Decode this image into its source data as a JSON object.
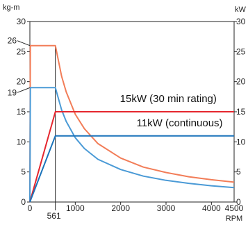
{
  "chart_data": {
    "type": "line",
    "title": "",
    "x_unit": "RPM",
    "y_left_unit": "kg-m",
    "y_right_unit": "kW",
    "xlim": [
      0,
      4500
    ],
    "ylim": [
      0,
      30
    ],
    "x_ticks": [
      {
        "value": 0,
        "label": "0"
      },
      {
        "value": 561,
        "label": "561"
      },
      {
        "value": 1000,
        "label": "1000"
      },
      {
        "value": 2000,
        "label": "2000"
      },
      {
        "value": 3000,
        "label": "3000"
      },
      {
        "value": 4000,
        "label": "4000"
      },
      {
        "value": 4500,
        "label": "4500"
      }
    ],
    "y_ticks": [
      0,
      5,
      10,
      15,
      20,
      25,
      30
    ],
    "y_callouts": [
      {
        "value": 26,
        "label": "26"
      },
      {
        "value": 19,
        "label": "19"
      }
    ],
    "series": [
      {
        "name": "15kW (30 min rating)",
        "kind": "power",
        "color": "#e5262e",
        "points": [
          [
            0,
            0
          ],
          [
            561,
            15
          ],
          [
            4500,
            15
          ]
        ]
      },
      {
        "name": "11kW (continuous)",
        "kind": "power",
        "color": "#1a73ba",
        "points": [
          [
            0,
            0
          ],
          [
            561,
            11
          ],
          [
            4500,
            11
          ]
        ]
      },
      {
        "name": "",
        "kind": "torque",
        "color": "#f27d58",
        "points": [
          [
            0,
            0
          ],
          [
            10,
            26
          ],
          [
            561,
            26
          ],
          [
            700,
            20.9
          ],
          [
            800,
            18.3
          ],
          [
            1000,
            14.6
          ],
          [
            1200,
            12.2
          ],
          [
            1500,
            9.7
          ],
          [
            2000,
            7.3
          ],
          [
            2500,
            5.8
          ],
          [
            3000,
            4.9
          ],
          [
            3500,
            4.2
          ],
          [
            4000,
            3.7
          ],
          [
            4500,
            3.3
          ]
        ]
      },
      {
        "name": "",
        "kind": "torque",
        "color": "#4a9ad6",
        "points": [
          [
            0,
            0
          ],
          [
            10,
            19
          ],
          [
            561,
            19
          ],
          [
            700,
            15.3
          ],
          [
            800,
            13.4
          ],
          [
            1000,
            10.7
          ],
          [
            1200,
            8.9
          ],
          [
            1500,
            7.1
          ],
          [
            2000,
            5.4
          ],
          [
            2500,
            4.3
          ],
          [
            3000,
            3.6
          ],
          [
            3500,
            3.1
          ],
          [
            4000,
            2.7
          ],
          [
            4500,
            2.4
          ]
        ]
      }
    ],
    "annotations": [
      {
        "text": "15kW (30 min rating)",
        "x": 3050,
        "y": 16.6
      },
      {
        "text": "11kW (continuous)",
        "x": 3300,
        "y": 12.6
      }
    ],
    "grid": false
  }
}
